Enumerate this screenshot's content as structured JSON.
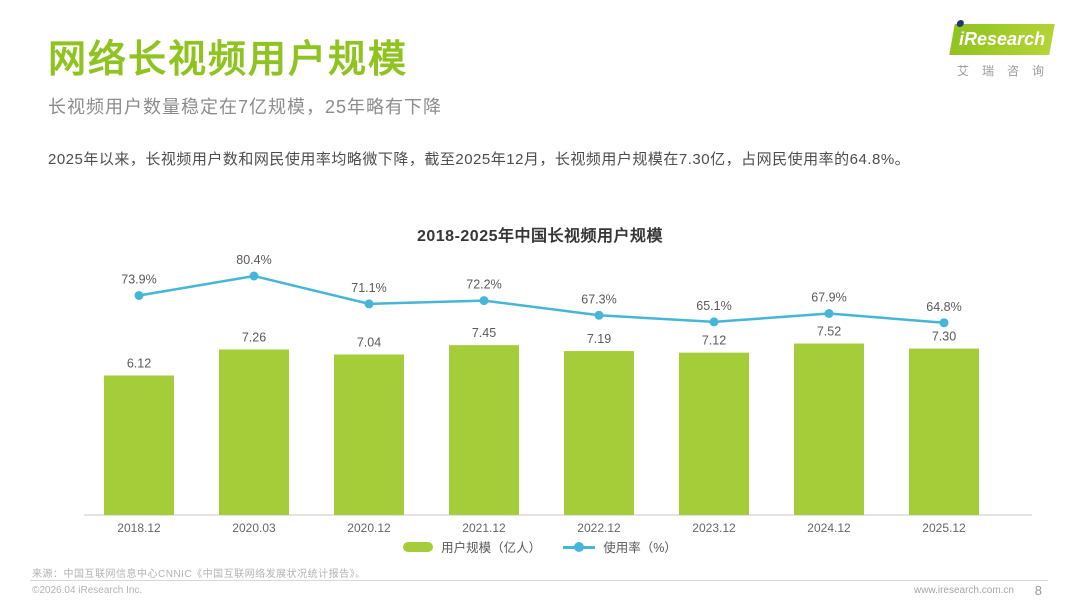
{
  "page": {
    "title": "网络长视频用户规模",
    "subtitle": "长视频用户数量稳定在7亿规模，25年略有下降",
    "body": "2025年以来，长视频用户数和网民使用率均略微下降，截至2025年12月，长视频用户规模在7.30亿，占网民使用率的64.8%。",
    "page_number": "8"
  },
  "logo": {
    "brand": "Research",
    "brand_i": "i",
    "brand_cn": "艾瑞咨询"
  },
  "footer": {
    "source": "来源：中国互联网信息中心CNNIC《中国互联网络发展状况统计报告》。",
    "copyright": "©2026.04 iResearch Inc.",
    "website": "www.iresearch.com.cn"
  },
  "colors": {
    "brand_green": "#8fc31f",
    "bar_green": "#a5cd3a",
    "line_blue": "#45b6d8"
  },
  "chart_data": {
    "type": "bar",
    "title": "2018-2025年中国长视频用户规模",
    "categories": [
      "2018.12",
      "2020.03",
      "2020.12",
      "2021.12",
      "2022.12",
      "2023.12",
      "2024.12",
      "2025.12"
    ],
    "series": [
      {
        "name": "用户规模（亿人）",
        "type": "bar",
        "color": "#a5cd3a",
        "values": [
          6.12,
          7.26,
          7.04,
          7.45,
          7.19,
          7.12,
          7.52,
          7.3
        ]
      },
      {
        "name": "使用率（%）",
        "type": "line",
        "color": "#45b6d8",
        "values": [
          73.9,
          80.4,
          71.1,
          72.2,
          67.3,
          65.1,
          67.9,
          64.8
        ]
      }
    ],
    "grid": false,
    "legend_position": "bottom",
    "value_labels": true
  }
}
